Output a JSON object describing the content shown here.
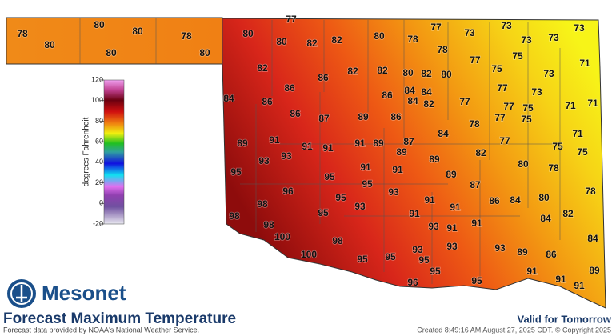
{
  "map": {
    "title": "Forecast Maximum Temperature",
    "source": "Forecast data provided by NOAA's National Weather Service.",
    "valid": "Valid for Tomorrow",
    "created": "Created 8:49:16 AM August 27, 2025 CDT. © Copyright 2025",
    "brand": "Mesonet",
    "stations": [
      78,
      80,
      80,
      80,
      80,
      78,
      80,
      80,
      77,
      80,
      82,
      82,
      80,
      78,
      77,
      73,
      73,
      73,
      73,
      73,
      78,
      77,
      75,
      71,
      82,
      86,
      82,
      82,
      80,
      82,
      80,
      73,
      75,
      84,
      86,
      84,
      84,
      86,
      84,
      82,
      77,
      77,
      73,
      86,
      86,
      87,
      89,
      86,
      77,
      75,
      71,
      71,
      78,
      77,
      75,
      84,
      71,
      89,
      91,
      91,
      91,
      91,
      89,
      87,
      89,
      77,
      75,
      75,
      95,
      93,
      93,
      91,
      91,
      89,
      82,
      80,
      78,
      95,
      95,
      93,
      89,
      87,
      96,
      95,
      86,
      84,
      80,
      78,
      98,
      93,
      91,
      91,
      95,
      91,
      84,
      82,
      98,
      98,
      93,
      91,
      91,
      100,
      98,
      84,
      93,
      93,
      89,
      93,
      100,
      95,
      95,
      95,
      86,
      95,
      91,
      89,
      96,
      95,
      91,
      91
    ]
  },
  "legend": {
    "label": "degrees Fahrenheit",
    "ticks": [
      120,
      100,
      80,
      60,
      40,
      20,
      0,
      -20
    ]
  }
}
